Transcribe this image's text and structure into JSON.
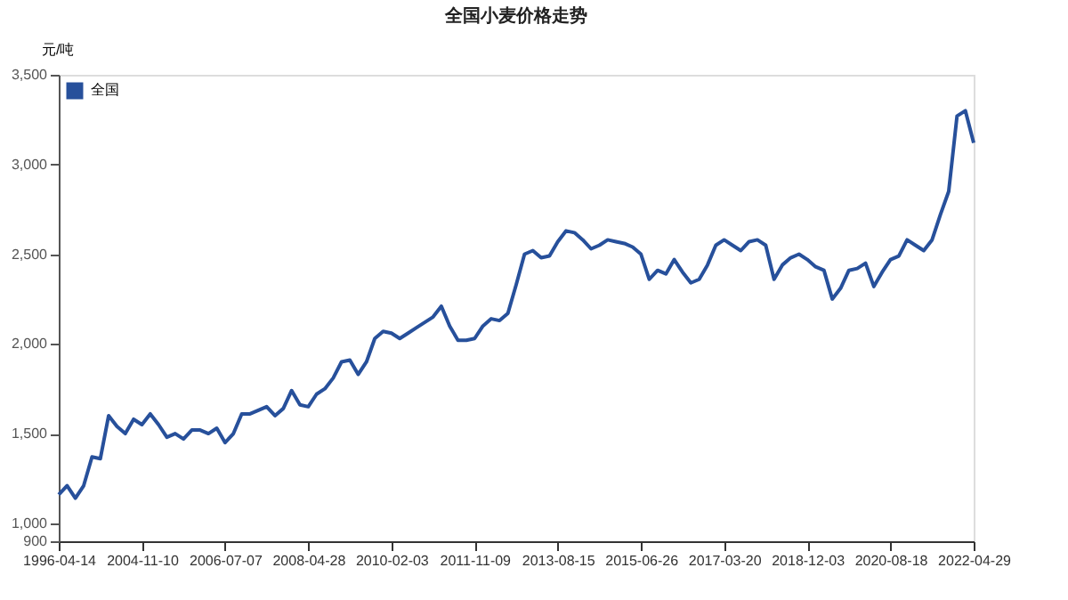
{
  "chart_data": {
    "type": "line",
    "title": "全国小麦价格走势",
    "ylabel": "元/吨",
    "categories": [
      "1996-04-14",
      null,
      null,
      null,
      null,
      null,
      null,
      null,
      null,
      null,
      "2004-11-10",
      null,
      null,
      null,
      null,
      null,
      null,
      null,
      null,
      null,
      "2006-07-07",
      null,
      null,
      null,
      null,
      null,
      null,
      null,
      null,
      null,
      "2008-04-28",
      null,
      null,
      null,
      null,
      null,
      null,
      null,
      null,
      null,
      "2010-02-03",
      null,
      null,
      null,
      null,
      null,
      null,
      null,
      null,
      null,
      "2011-11-09",
      null,
      null,
      null,
      null,
      null,
      null,
      null,
      null,
      null,
      "2013-08-15",
      null,
      null,
      null,
      null,
      null,
      null,
      null,
      null,
      null,
      "2015-06-26",
      null,
      null,
      null,
      null,
      null,
      null,
      null,
      null,
      null,
      "2017-03-20",
      null,
      null,
      null,
      null,
      null,
      null,
      null,
      null,
      null,
      "2018-12-03",
      null,
      null,
      null,
      null,
      null,
      null,
      null,
      null,
      null,
      "2020-08-18",
      null,
      null,
      null,
      null,
      null,
      null,
      null,
      null,
      null,
      "2022-04-29"
    ],
    "ylim": [
      900,
      3500
    ],
    "yticks": [
      900,
      {
        "value": 1000,
        "label": "1,000"
      },
      {
        "value": 1500,
        "label": "1,500"
      },
      {
        "value": 2000,
        "label": "2,000"
      },
      {
        "value": 2500,
        "label": "2,500"
      },
      {
        "value": 3000,
        "label": "3,000"
      },
      {
        "value": 3500,
        "label": "3,500"
      }
    ],
    "grid": false,
    "legend": "top left",
    "marker": "none",
    "line_style": "solid",
    "series": [
      {
        "name": "全国",
        "color": "#27509b",
        "values": [
          1160,
          1210,
          1140,
          1210,
          1370,
          1360,
          1600,
          1540,
          1500,
          1580,
          1550,
          1610,
          1550,
          1480,
          1500,
          1470,
          1520,
          1520,
          1500,
          1530,
          1450,
          1500,
          1610,
          1610,
          1630,
          1650,
          1600,
          1640,
          1740,
          1660,
          1650,
          1720,
          1750,
          1810,
          1900,
          1910,
          1830,
          1900,
          2030,
          2070,
          2060,
          2030,
          2060,
          2090,
          2120,
          2150,
          2210,
          2100,
          2020,
          2020,
          2030,
          2100,
          2140,
          2130,
          2170,
          2330,
          2500,
          2520,
          2480,
          2490,
          2570,
          2630,
          2620,
          2580,
          2530,
          2550,
          2580,
          2570,
          2560,
          2540,
          2500,
          2360,
          2410,
          2390,
          2470,
          2400,
          2340,
          2360,
          2440,
          2550,
          2580,
          2550,
          2520,
          2570,
          2580,
          2550,
          2360,
          2440,
          2480,
          2500,
          2470,
          2430,
          2410,
          2250,
          2310,
          2410,
          2420,
          2450,
          2320,
          2400,
          2470,
          2490,
          2580,
          2550,
          2520,
          2580,
          2720,
          2850,
          3270,
          3300,
          3120
        ]
      }
    ]
  }
}
